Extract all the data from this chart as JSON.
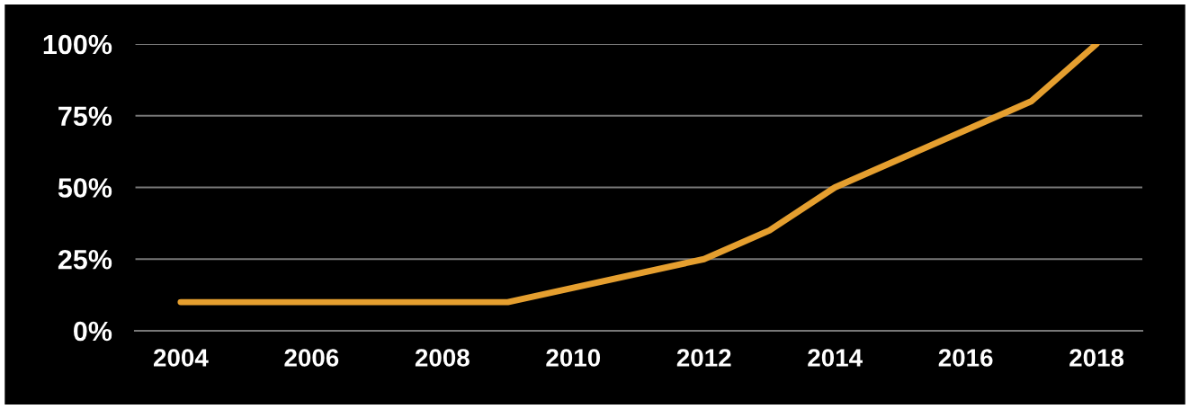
{
  "chart_data": {
    "type": "line",
    "x": [
      2004,
      2009,
      2012,
      2013,
      2014,
      2016,
      2017,
      2018
    ],
    "series": [
      {
        "color": "#e59f2f",
        "values": [
          10,
          10,
          25,
          35,
          50,
          70,
          80,
          100
        ]
      }
    ],
    "xlim": [
      2003.3,
      2018.7
    ],
    "xticks": [
      2004,
      2006,
      2008,
      2010,
      2012,
      2014,
      2016,
      2018
    ],
    "ylim": [
      0,
      100
    ],
    "yticks": [
      {
        "value": 0,
        "label": "0%"
      },
      {
        "value": 25,
        "label": "25%"
      },
      {
        "value": 50,
        "label": "50%"
      },
      {
        "value": 75,
        "label": "75%"
      },
      {
        "value": 100,
        "label": "100%"
      }
    ],
    "grid": "y",
    "marker": "none",
    "line_style": "solid"
  }
}
